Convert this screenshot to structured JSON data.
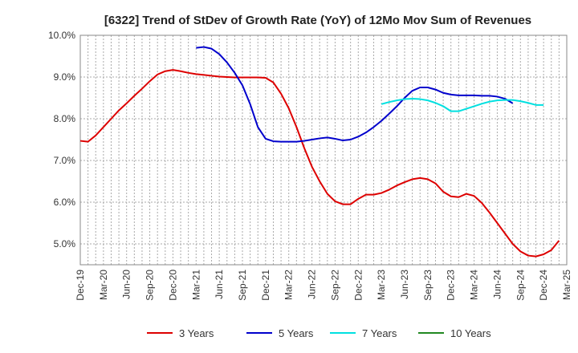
{
  "chart_data": {
    "type": "line",
    "title": "[6322]  Trend of StDev of Growth Rate (YoY) of 12Mo Mov Sum of Revenues",
    "xlabel": "",
    "ylabel": "",
    "ylim": [
      4.5,
      10.0
    ],
    "y_ticks": [
      5.0,
      6.0,
      7.0,
      8.0,
      9.0,
      10.0
    ],
    "y_tick_labels": [
      "5.0%",
      "6.0%",
      "7.0%",
      "8.0%",
      "9.0%",
      "10.0%"
    ],
    "x_tick_labels": [
      "Dec-19",
      "Mar-20",
      "Jun-20",
      "Sep-20",
      "Dec-20",
      "Mar-21",
      "Jun-21",
      "Sep-21",
      "Dec-21",
      "Mar-22",
      "Jun-22",
      "Sep-22",
      "Dec-22",
      "Mar-23",
      "Jun-23",
      "Sep-23",
      "Dec-23",
      "Mar-24",
      "Jun-24",
      "Sep-24",
      "Dec-24",
      "Mar-25"
    ],
    "x_start": "Dec-19",
    "x_months": 63,
    "grid": true,
    "legend_position": "bottom",
    "series": [
      {
        "name": "3 Years",
        "color": "#dd0000",
        "start_index": 0,
        "values": [
          7.47,
          7.45,
          7.6,
          7.8,
          8.0,
          8.2,
          8.37,
          8.55,
          8.72,
          8.9,
          9.06,
          9.14,
          9.17,
          9.14,
          9.1,
          9.07,
          9.05,
          9.03,
          9.01,
          9.0,
          8.99,
          8.99,
          8.99,
          8.99,
          8.98,
          8.87,
          8.6,
          8.25,
          7.8,
          7.3,
          6.85,
          6.5,
          6.2,
          6.02,
          5.95,
          5.95,
          6.08,
          6.18,
          6.18,
          6.22,
          6.3,
          6.4,
          6.48,
          6.55,
          6.58,
          6.55,
          6.45,
          6.25,
          6.14,
          6.12,
          6.2,
          6.15,
          5.98,
          5.75,
          5.5,
          5.25,
          5.0,
          4.82,
          4.72,
          4.7,
          4.75,
          4.85,
          5.08
        ]
      },
      {
        "name": "5 Years",
        "color": "#0000cc",
        "start_index": 15,
        "values": [
          9.7,
          9.72,
          9.68,
          9.55,
          9.35,
          9.1,
          8.8,
          8.35,
          7.8,
          7.52,
          7.46,
          7.45,
          7.45,
          7.45,
          7.47,
          7.5,
          7.53,
          7.55,
          7.52,
          7.48,
          7.5,
          7.57,
          7.67,
          7.8,
          7.95,
          8.12,
          8.3,
          8.5,
          8.67,
          8.75,
          8.75,
          8.7,
          8.62,
          8.58,
          8.56,
          8.56,
          8.56,
          8.55,
          8.55,
          8.53,
          8.48,
          8.37
        ]
      },
      {
        "name": "7 Years",
        "color": "#00e0e0",
        "start_index": 39,
        "values": [
          8.35,
          8.4,
          8.44,
          8.47,
          8.48,
          8.47,
          8.44,
          8.38,
          8.3,
          8.18,
          8.18,
          8.24,
          8.3,
          8.36,
          8.41,
          8.44,
          8.45,
          8.45,
          8.42,
          8.38,
          8.33,
          8.33
        ]
      },
      {
        "name": "10 Years",
        "color": "#228822",
        "start_index": 0,
        "values": []
      }
    ]
  }
}
